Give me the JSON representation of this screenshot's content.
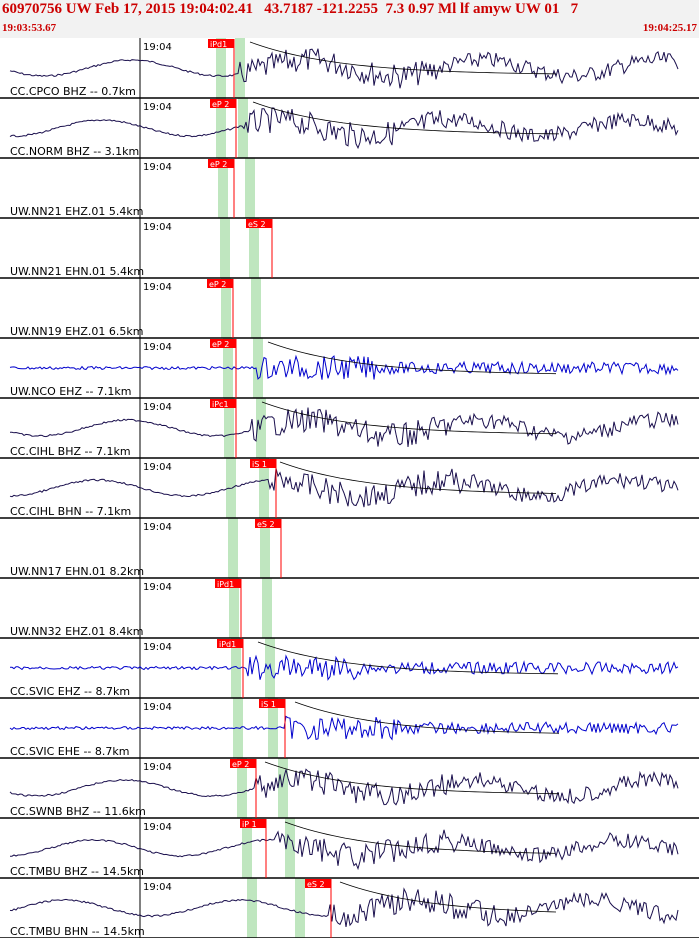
{
  "header": {
    "title": "60970756 UW Feb 17, 2015 19:04:02.41   43.7187 -121.2255  7.3 0.97 Ml lf amyw UW 01   7",
    "start_time": "19:03:53.67",
    "end_time": "19:04:25.17"
  },
  "time_tick_label": "19:04",
  "colors": {
    "header_bg": "#f2f2f2",
    "title": "#cc0000",
    "trace_dark": "#1a0f4d",
    "trace_blue": "#0000cc",
    "pick_red": "#ff0000",
    "window_green": "#bfe6bf"
  },
  "traces": [
    {
      "label": "CC.CPCO BHZ -- 0.7km",
      "pick": "iPd1",
      "pick2": "",
      "color": "dark"
    },
    {
      "label": "CC.NORM BHZ -- 3.1km",
      "pick": "eP 2",
      "pick2": "",
      "color": "dark"
    },
    {
      "label": "UW.NN21 EHZ.01 5.4km",
      "pick": "eP 2",
      "pick2": "",
      "color": "none"
    },
    {
      "label": "UW.NN21 EHN.01 5.4km",
      "pick": "eS 2",
      "pick2": "",
      "color": "none"
    },
    {
      "label": "UW.NN19 EHZ.01 6.5km",
      "pick": "eP 2",
      "pick2": "",
      "color": "none"
    },
    {
      "label": "UW.NCO EHZ -- 7.1km",
      "pick": "eP 2",
      "pick2": "",
      "color": "blue"
    },
    {
      "label": "CC.CIHL BHZ -- 7.1km",
      "pick": "iPc1",
      "pick2": "",
      "color": "dark"
    },
    {
      "label": "CC.CIHL BHN -- 7.1km",
      "pick": "iS 1",
      "pick2": "",
      "color": "dark"
    },
    {
      "label": "UW.NN17 EHN.01 8.2km",
      "pick": "eS 2",
      "pick2": "",
      "color": "none"
    },
    {
      "label": "UW.NN32 EHZ.01 8.4km",
      "pick": "iPd1",
      "pick2": "",
      "color": "none"
    },
    {
      "label": "CC.SVIC EHZ -- 8.7km",
      "pick": "iPd1",
      "pick2": "",
      "color": "blue"
    },
    {
      "label": "CC.SVIC EHE -- 8.7km",
      "pick": "iS 1",
      "pick2": "",
      "color": "blue"
    },
    {
      "label": "CC.SWNB BHZ -- 11.6km",
      "pick": "eP 2",
      "pick2": "",
      "color": "dark"
    },
    {
      "label": "CC.TMBU BHZ -- 14.5km",
      "pick": "iP 1",
      "pick2": "",
      "color": "dark"
    },
    {
      "label": "CC.TMBU BHN -- 14.5km",
      "pick": "eS 2",
      "pick2": "",
      "color": "dark"
    }
  ]
}
